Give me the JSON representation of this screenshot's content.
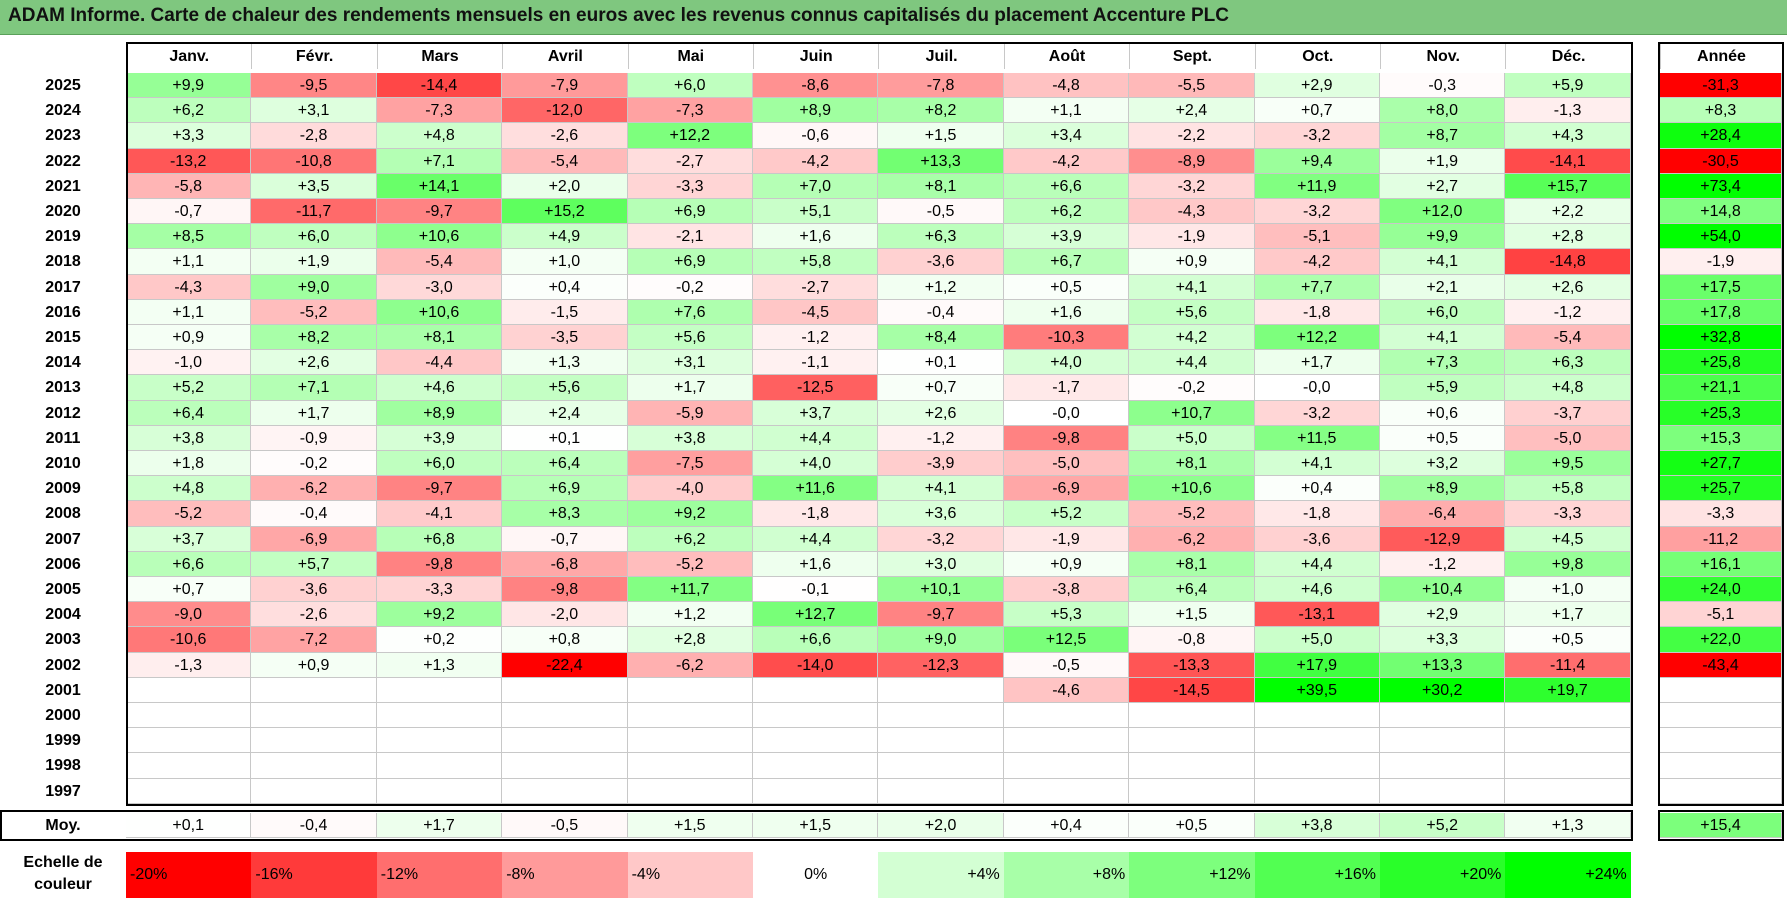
{
  "title": "ADAM Informe. Carte de chaleur des rendements mensuels en euros avec les revenus connus capitalisés du placement Accenture PLC",
  "months": [
    "Janv.",
    "Févr.",
    "Mars",
    "Avril",
    "Mai",
    "Juin",
    "Juil.",
    "Août",
    "Sept.",
    "Oct.",
    "Nov.",
    "Déc."
  ],
  "year_header": "Année",
  "avg_label": "Moy.",
  "scale_label": "Echelle de couleur",
  "scale": [
    "-20%",
    "-16%",
    "-12%",
    "-8%",
    "-4%",
    "0%",
    "+4%",
    "+8%",
    "+12%",
    "+16%",
    "+20%",
    "+24%"
  ],
  "chart_data": {
    "type": "heatmap",
    "title": "ADAM Informe. Carte de chaleur des rendements mensuels en euros avec les revenus connus capitalisés du placement Accenture PLC",
    "x_categories": [
      "Janv.",
      "Févr.",
      "Mars",
      "Avril",
      "Mai",
      "Juin",
      "Juil.",
      "Août",
      "Sept.",
      "Oct.",
      "Nov.",
      "Déc."
    ],
    "rows": [
      {
        "year": "2025",
        "months": [
          "+9,9",
          "-9,5",
          "-14,4",
          "-7,9",
          "+6,0",
          "-8,6",
          "-7,8",
          "-4,8",
          "-5,5",
          "+2,9",
          "-0,3",
          "+5,9"
        ],
        "annual": "-31,3"
      },
      {
        "year": "2024",
        "months": [
          "+6,2",
          "+3,1",
          "-7,3",
          "-12,0",
          "-7,3",
          "+8,9",
          "+8,2",
          "+1,1",
          "+2,4",
          "+0,7",
          "+8,0",
          "-1,3"
        ],
        "annual": "+8,3"
      },
      {
        "year": "2023",
        "months": [
          "+3,3",
          "-2,8",
          "+4,8",
          "-2,6",
          "+12,2",
          "-0,6",
          "+1,5",
          "+3,4",
          "-2,2",
          "-3,2",
          "+8,7",
          "+4,3"
        ],
        "annual": "+28,4"
      },
      {
        "year": "2022",
        "months": [
          "-13,2",
          "-10,8",
          "+7,1",
          "-5,4",
          "-2,7",
          "-4,2",
          "+13,3",
          "-4,2",
          "-8,9",
          "+9,4",
          "+1,9",
          "-14,1"
        ],
        "annual": "-30,5"
      },
      {
        "year": "2021",
        "months": [
          "-5,8",
          "+3,5",
          "+14,1",
          "+2,0",
          "-3,3",
          "+7,0",
          "+8,1",
          "+6,6",
          "-3,2",
          "+11,9",
          "+2,7",
          "+15,7"
        ],
        "annual": "+73,4"
      },
      {
        "year": "2020",
        "months": [
          "-0,7",
          "-11,7",
          "-9,7",
          "+15,2",
          "+6,9",
          "+5,1",
          "-0,5",
          "+6,2",
          "-4,3",
          "-3,2",
          "+12,0",
          "+2,2"
        ],
        "annual": "+14,8"
      },
      {
        "year": "2019",
        "months": [
          "+8,5",
          "+6,0",
          "+10,6",
          "+4,9",
          "-2,1",
          "+1,6",
          "+6,3",
          "+3,9",
          "-1,9",
          "-5,1",
          "+9,9",
          "+2,8"
        ],
        "annual": "+54,0"
      },
      {
        "year": "2018",
        "months": [
          "+1,1",
          "+1,9",
          "-5,4",
          "+1,0",
          "+6,9",
          "+5,8",
          "-3,6",
          "+6,7",
          "+0,9",
          "-4,2",
          "+4,1",
          "-14,8"
        ],
        "annual": "-1,9"
      },
      {
        "year": "2017",
        "months": [
          "-4,3",
          "+9,0",
          "-3,0",
          "+0,4",
          "-0,2",
          "-2,7",
          "+1,2",
          "+0,5",
          "+4,1",
          "+7,7",
          "+2,1",
          "+2,6"
        ],
        "annual": "+17,5"
      },
      {
        "year": "2016",
        "months": [
          "+1,1",
          "-5,2",
          "+10,6",
          "-1,5",
          "+7,6",
          "-4,5",
          "-0,4",
          "+1,6",
          "+5,6",
          "-1,8",
          "+6,0",
          "-1,2"
        ],
        "annual": "+17,8"
      },
      {
        "year": "2015",
        "months": [
          "+0,9",
          "+8,2",
          "+8,1",
          "-3,5",
          "+5,6",
          "-1,2",
          "+8,4",
          "-10,3",
          "+4,2",
          "+12,2",
          "+4,1",
          "-5,4"
        ],
        "annual": "+32,8"
      },
      {
        "year": "2014",
        "months": [
          "-1,0",
          "+2,6",
          "-4,4",
          "+1,3",
          "+3,1",
          "-1,1",
          "+0,1",
          "+4,0",
          "+4,4",
          "+1,7",
          "+7,3",
          "+6,3"
        ],
        "annual": "+25,8"
      },
      {
        "year": "2013",
        "months": [
          "+5,2",
          "+7,1",
          "+4,6",
          "+5,6",
          "+1,7",
          "-12,5",
          "+0,7",
          "-1,7",
          "-0,2",
          "-0,0",
          "+5,9",
          "+4,8"
        ],
        "annual": "+21,1"
      },
      {
        "year": "2012",
        "months": [
          "+6,4",
          "+1,7",
          "+8,9",
          "+2,4",
          "-5,9",
          "+3,7",
          "+2,6",
          "-0,0",
          "+10,7",
          "-3,2",
          "+0,6",
          "-3,7"
        ],
        "annual": "+25,3"
      },
      {
        "year": "2011",
        "months": [
          "+3,8",
          "-0,9",
          "+3,9",
          "+0,1",
          "+3,8",
          "+4,4",
          "-1,2",
          "-9,8",
          "+5,0",
          "+11,5",
          "+0,5",
          "-5,0"
        ],
        "annual": "+15,3"
      },
      {
        "year": "2010",
        "months": [
          "+1,8",
          "-0,2",
          "+6,0",
          "+6,4",
          "-7,5",
          "+4,0",
          "-3,9",
          "-5,0",
          "+8,1",
          "+4,1",
          "+3,2",
          "+9,5"
        ],
        "annual": "+27,7"
      },
      {
        "year": "2009",
        "months": [
          "+4,8",
          "-6,2",
          "-9,7",
          "+6,9",
          "-4,0",
          "+11,6",
          "+4,1",
          "-6,9",
          "+10,6",
          "+0,4",
          "+8,9",
          "+5,8"
        ],
        "annual": "+25,7"
      },
      {
        "year": "2008",
        "months": [
          "-5,2",
          "-0,4",
          "-4,1",
          "+8,3",
          "+9,2",
          "-1,8",
          "+3,6",
          "+5,2",
          "-5,2",
          "-1,8",
          "-6,4",
          "-3,3"
        ],
        "annual": "-3,3"
      },
      {
        "year": "2007",
        "months": [
          "+3,7",
          "-6,9",
          "+6,8",
          "-0,7",
          "+6,2",
          "+4,4",
          "-3,2",
          "-1,9",
          "-6,2",
          "-3,6",
          "-12,9",
          "+4,5"
        ],
        "annual": "-11,2"
      },
      {
        "year": "2006",
        "months": [
          "+6,6",
          "+5,7",
          "-9,8",
          "-6,8",
          "-5,2",
          "+1,6",
          "+3,0",
          "+0,9",
          "+8,1",
          "+4,4",
          "-1,2",
          "+9,8"
        ],
        "annual": "+16,1"
      },
      {
        "year": "2005",
        "months": [
          "+0,7",
          "-3,6",
          "-3,3",
          "-9,8",
          "+11,7",
          "-0,1",
          "+10,1",
          "-3,8",
          "+6,4",
          "+4,6",
          "+10,4",
          "+1,0"
        ],
        "annual": "+24,0"
      },
      {
        "year": "2004",
        "months": [
          "-9,0",
          "-2,6",
          "+9,2",
          "-2,0",
          "+1,2",
          "+12,7",
          "-9,7",
          "+5,3",
          "+1,5",
          "-13,1",
          "+2,9",
          "+1,7"
        ],
        "annual": "-5,1"
      },
      {
        "year": "2003",
        "months": [
          "-10,6",
          "-7,2",
          "+0,2",
          "+0,8",
          "+2,8",
          "+6,6",
          "+9,0",
          "+12,5",
          "-0,8",
          "+5,0",
          "+3,3",
          "+0,5"
        ],
        "annual": "+22,0"
      },
      {
        "year": "2002",
        "months": [
          "-1,3",
          "+0,9",
          "+1,3",
          "-22,4",
          "-6,2",
          "-14,0",
          "-12,3",
          "-0,5",
          "-13,3",
          "+17,9",
          "+13,3",
          "-11,4"
        ],
        "annual": "-43,4"
      },
      {
        "year": "2001",
        "months": [
          "",
          "",
          "",
          "",
          "",
          "",
          "",
          "-4,6",
          "-14,5",
          "+39,5",
          "+30,2",
          "+19,7"
        ],
        "annual": ""
      },
      {
        "year": "2000",
        "months": [
          "",
          "",
          "",
          "",
          "",
          "",
          "",
          "",
          "",
          "",
          "",
          ""
        ],
        "annual": ""
      },
      {
        "year": "1999",
        "months": [
          "",
          "",
          "",
          "",
          "",
          "",
          "",
          "",
          "",
          "",
          "",
          ""
        ],
        "annual": ""
      },
      {
        "year": "1998",
        "months": [
          "",
          "",
          "",
          "",
          "",
          "",
          "",
          "",
          "",
          "",
          "",
          ""
        ],
        "annual": ""
      },
      {
        "year": "1997",
        "months": [
          "",
          "",
          "",
          "",
          "",
          "",
          "",
          "",
          "",
          "",
          "",
          ""
        ],
        "annual": ""
      }
    ],
    "average": {
      "months": [
        "+0,1",
        "-0,4",
        "+1,7",
        "-0,5",
        "+1,5",
        "+1,5",
        "+2,0",
        "+0,4",
        "+0,5",
        "+3,8",
        "+5,2",
        "+1,3"
      ],
      "annual": "+15,4"
    },
    "color_scale": {
      "min": -20,
      "max": 24,
      "negative_color": "#ff0000",
      "positive_color": "#00ff00",
      "neutral_color": "#ffffff"
    }
  }
}
